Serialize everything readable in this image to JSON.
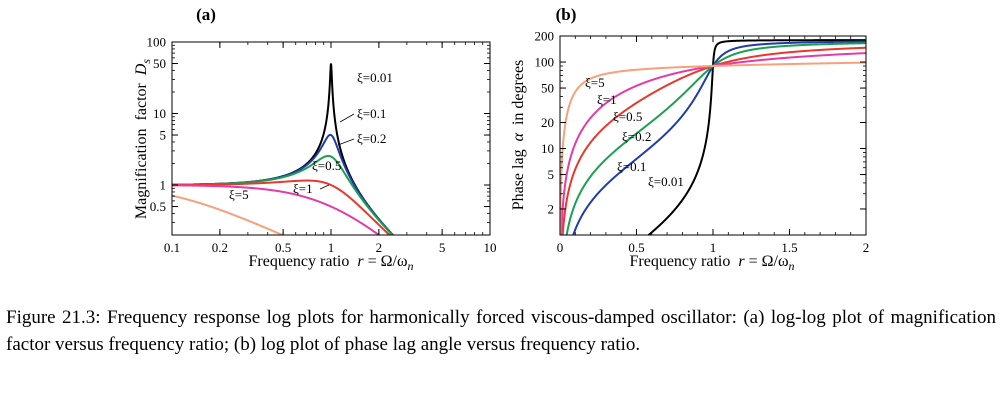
{
  "caption": "Figure 21.3: Frequency response log plots for harmonically forced viscous-damped oscillator: (a) log-log plot of magnification factor versus frequency ratio; (b) log plot of phase lag angle versus frequency ratio.",
  "chart_data": [
    {
      "type": "line",
      "panel_label": "(a)",
      "xlabel": "Frequency ratio  r = Ω/ωn",
      "ylabel": "Magnification  factor  Ds",
      "xscale": "log",
      "yscale": "log",
      "xlim": [
        0.1,
        10
      ],
      "ylim": [
        0.2,
        100
      ],
      "x_ticks": [
        "0.1",
        "0.2",
        "0.5",
        "1",
        "2",
        "5",
        "10"
      ],
      "y_ticks": [
        "0.5",
        "1",
        "5",
        "10",
        "50",
        "100"
      ],
      "grid": false,
      "series": [
        {
          "name": "ξ=0.01",
          "zeta": 0.01,
          "color": "#000000"
        },
        {
          "name": "ξ=0.1",
          "zeta": 0.1,
          "color": "#1f3ca8"
        },
        {
          "name": "ξ=0.2",
          "zeta": 0.2,
          "color": "#1aa050"
        },
        {
          "name": "ξ=0.5",
          "zeta": 0.5,
          "color": "#e8382c"
        },
        {
          "name": "ξ=1",
          "zeta": 1,
          "color": "#e23ca8"
        },
        {
          "name": "ξ=5",
          "zeta": 5,
          "color": "#f7a07a"
        }
      ]
    },
    {
      "type": "line",
      "panel_label": "(b)",
      "xlabel": "Frequency ratio  r = Ω/ωn",
      "ylabel": "Phase lag  α  in degrees",
      "xscale": "linear",
      "yscale": "log",
      "xlim": [
        0,
        2
      ],
      "ylim": [
        1,
        200
      ],
      "x_ticks": [
        "0",
        "0.5",
        "1",
        "1.5",
        "2"
      ],
      "y_ticks": [
        "2",
        "5",
        "10",
        "20",
        "50",
        "100",
        "200"
      ],
      "grid": false,
      "series": [
        {
          "name": "ξ=0.01",
          "zeta": 0.01,
          "color": "#000000"
        },
        {
          "name": "ξ=0.1",
          "zeta": 0.1,
          "color": "#1f3ca8"
        },
        {
          "name": "ξ=0.2",
          "zeta": 0.2,
          "color": "#1aa050"
        },
        {
          "name": "ξ=0.5",
          "zeta": 0.5,
          "color": "#e8382c"
        },
        {
          "name": "ξ=1",
          "zeta": 1,
          "color": "#e23ca8"
        },
        {
          "name": "ξ=5",
          "zeta": 5,
          "color": "#f7a07a"
        }
      ]
    }
  ]
}
